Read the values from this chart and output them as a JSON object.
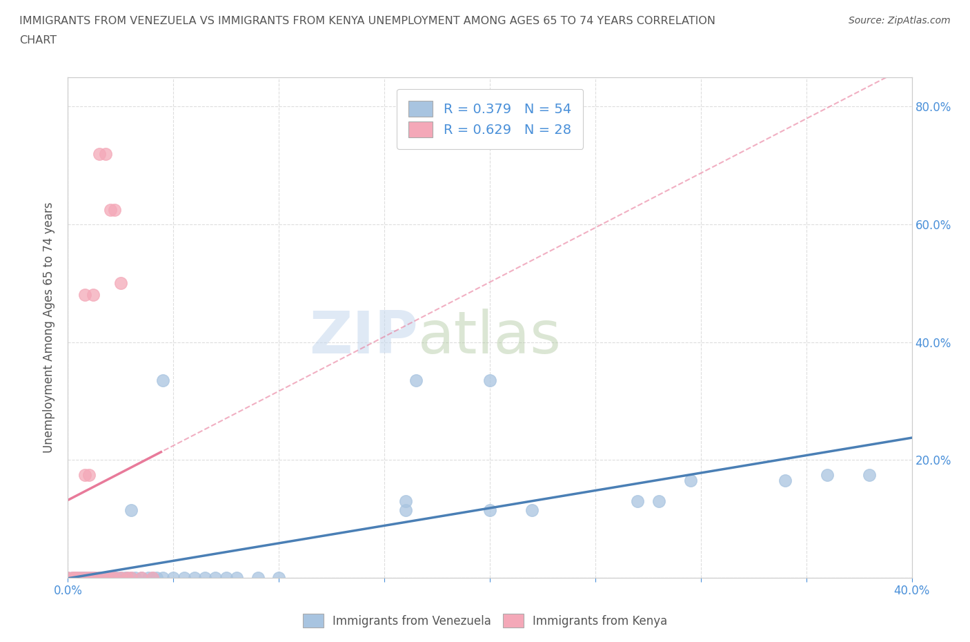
{
  "title_line1": "IMMIGRANTS FROM VENEZUELA VS IMMIGRANTS FROM KENYA UNEMPLOYMENT AMONG AGES 65 TO 74 YEARS CORRELATION",
  "title_line2": "CHART",
  "source": "Source: ZipAtlas.com",
  "ylabel": "Unemployment Among Ages 65 to 74 years",
  "xlim": [
    0.0,
    0.4
  ],
  "ylim": [
    0.0,
    0.85
  ],
  "xticks": [
    0.0,
    0.05,
    0.1,
    0.15,
    0.2,
    0.25,
    0.3,
    0.35,
    0.4
  ],
  "xticklabels": [
    "0.0%",
    "",
    "",
    "",
    "",
    "",
    "",
    "",
    "40.0%"
  ],
  "yticks": [
    0.0,
    0.2,
    0.4,
    0.6,
    0.8
  ],
  "yticklabels": [
    "",
    "20.0%",
    "40.0%",
    "60.0%",
    "80.0%"
  ],
  "watermark_zip": "ZIP",
  "watermark_atlas": "atlas",
  "venezuela_color": "#a8c4e0",
  "kenya_color": "#f4a8b8",
  "venezuela_R": 0.379,
  "venezuela_N": 54,
  "kenya_R": 0.629,
  "kenya_N": 28,
  "venezuela_scatter": [
    [
      0.0,
      0.0
    ],
    [
      0.002,
      0.0
    ],
    [
      0.003,
      0.0
    ],
    [
      0.004,
      0.0
    ],
    [
      0.005,
      0.0
    ],
    [
      0.006,
      0.0
    ],
    [
      0.007,
      0.0
    ],
    [
      0.008,
      0.0
    ],
    [
      0.009,
      0.0
    ],
    [
      0.01,
      0.0
    ],
    [
      0.011,
      0.0
    ],
    [
      0.012,
      0.0
    ],
    [
      0.013,
      0.0
    ],
    [
      0.015,
      0.0
    ],
    [
      0.016,
      0.0
    ],
    [
      0.017,
      0.0
    ],
    [
      0.018,
      0.0
    ],
    [
      0.02,
      0.0
    ],
    [
      0.021,
      0.0
    ],
    [
      0.022,
      0.0
    ],
    [
      0.023,
      0.0
    ],
    [
      0.025,
      0.0
    ],
    [
      0.027,
      0.0
    ],
    [
      0.028,
      0.0
    ],
    [
      0.03,
      0.0
    ],
    [
      0.032,
      0.0
    ],
    [
      0.035,
      0.0
    ],
    [
      0.038,
      0.0
    ],
    [
      0.04,
      0.0
    ],
    [
      0.042,
      0.0
    ],
    [
      0.045,
      0.0
    ],
    [
      0.05,
      0.0
    ],
    [
      0.055,
      0.0
    ],
    [
      0.06,
      0.0
    ],
    [
      0.065,
      0.0
    ],
    [
      0.07,
      0.0
    ],
    [
      0.075,
      0.0
    ],
    [
      0.08,
      0.0
    ],
    [
      0.09,
      0.0
    ],
    [
      0.1,
      0.0
    ],
    [
      0.03,
      0.115
    ],
    [
      0.045,
      0.335
    ],
    [
      0.165,
      0.335
    ],
    [
      0.2,
      0.335
    ],
    [
      0.16,
      0.115
    ],
    [
      0.16,
      0.13
    ],
    [
      0.27,
      0.13
    ],
    [
      0.28,
      0.13
    ],
    [
      0.295,
      0.165
    ],
    [
      0.34,
      0.165
    ],
    [
      0.36,
      0.175
    ],
    [
      0.38,
      0.175
    ],
    [
      0.2,
      0.115
    ],
    [
      0.22,
      0.115
    ]
  ],
  "kenya_scatter": [
    [
      0.0,
      0.0
    ],
    [
      0.002,
      0.0
    ],
    [
      0.003,
      0.0
    ],
    [
      0.004,
      0.0
    ],
    [
      0.005,
      0.0
    ],
    [
      0.007,
      0.0
    ],
    [
      0.009,
      0.0
    ],
    [
      0.01,
      0.0
    ],
    [
      0.012,
      0.0
    ],
    [
      0.013,
      0.0
    ],
    [
      0.015,
      0.0
    ],
    [
      0.018,
      0.0
    ],
    [
      0.02,
      0.0
    ],
    [
      0.022,
      0.0
    ],
    [
      0.025,
      0.0
    ],
    [
      0.028,
      0.0
    ],
    [
      0.03,
      0.0
    ],
    [
      0.035,
      0.0
    ],
    [
      0.04,
      0.0
    ],
    [
      0.008,
      0.175
    ],
    [
      0.01,
      0.175
    ],
    [
      0.02,
      0.625
    ],
    [
      0.022,
      0.625
    ],
    [
      0.025,
      0.5
    ],
    [
      0.015,
      0.72
    ],
    [
      0.018,
      0.72
    ],
    [
      0.008,
      0.48
    ],
    [
      0.012,
      0.48
    ]
  ],
  "background_color": "#ffffff",
  "grid_color": "#dddddd",
  "grid_style": "--",
  "axis_color": "#cccccc",
  "title_color": "#555555",
  "tick_color": "#4a90d9",
  "legend_text_color": "#4a90d9",
  "trendline_venezuela_color": "#4a7fb5",
  "trendline_kenya_color": "#e87a9a"
}
